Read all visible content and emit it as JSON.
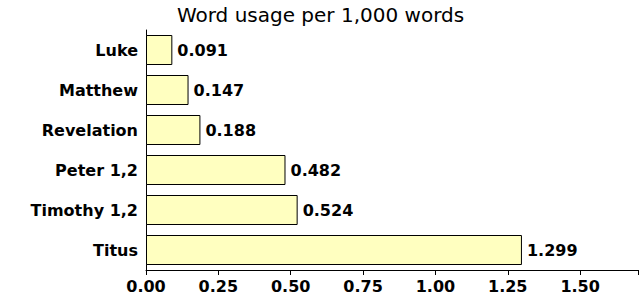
{
  "chart_data": {
    "type": "bar",
    "title": "Word usage per 1,000 words",
    "orientation": "horizontal",
    "categories": [
      "Luke",
      "Matthew",
      "Revelation",
      "Peter 1,2",
      "Timothy 1,2",
      "Titus"
    ],
    "values": [
      0.091,
      0.147,
      0.188,
      0.482,
      0.524,
      1.299
    ],
    "color": "#ffffc0",
    "xlim": [
      0,
      1.7
    ],
    "xticks": [
      {
        "value": 0,
        "label": "0.00"
      },
      {
        "value": 0.25,
        "label": "0.25"
      },
      {
        "value": 0.5,
        "label": "0.50"
      },
      {
        "value": 0.75,
        "label": "0.75"
      },
      {
        "value": 1,
        "label": "1.00"
      },
      {
        "value": 1.25,
        "label": "1.25"
      },
      {
        "value": 1.5,
        "label": "1.50"
      }
    ],
    "grid": false,
    "data_labels": true
  }
}
